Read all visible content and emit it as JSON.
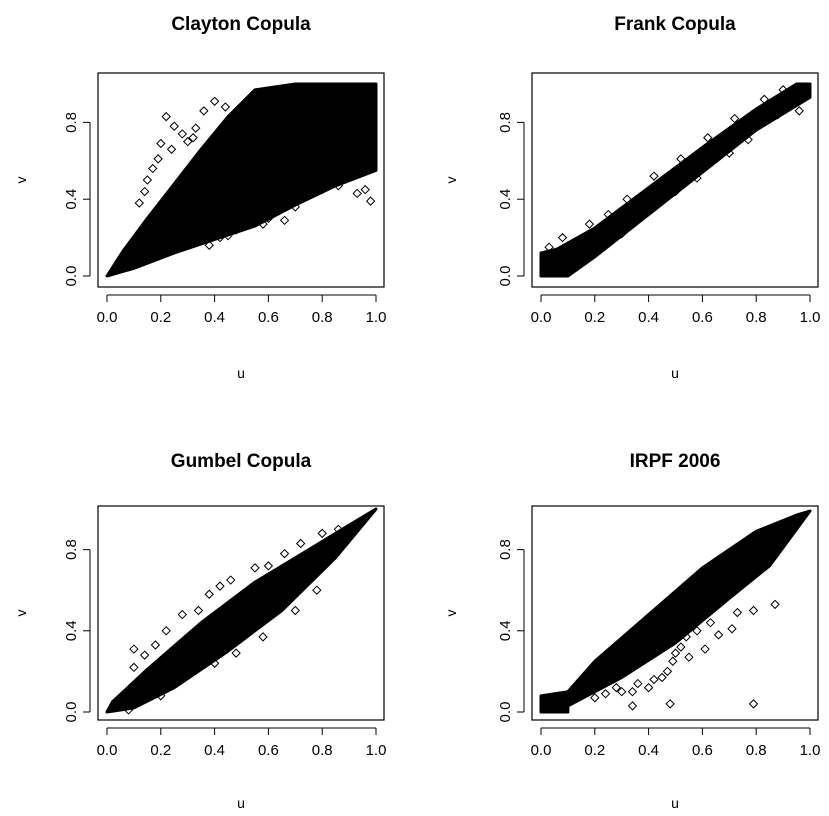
{
  "chart_data": [
    {
      "type": "scatter",
      "title": "Clayton Copula",
      "xlabel": "u",
      "ylabel": "v",
      "xlim": [
        0,
        1
      ],
      "ylim": [
        0,
        1
      ],
      "xticks": [
        "0.0",
        "0.2",
        "0.4",
        "0.6",
        "0.8",
        "1.0"
      ],
      "yticks": [
        "0.0",
        "0.4",
        "0.8"
      ],
      "dense_region": [
        [
          0.0,
          0.0
        ],
        [
          0.1,
          0.04
        ],
        [
          0.25,
          0.12
        ],
        [
          0.4,
          0.19
        ],
        [
          0.55,
          0.26
        ],
        [
          0.7,
          0.37
        ],
        [
          0.85,
          0.47
        ],
        [
          1.0,
          0.55
        ],
        [
          1.0,
          1.0
        ],
        [
          0.7,
          1.0
        ],
        [
          0.55,
          0.97
        ],
        [
          0.45,
          0.83
        ],
        [
          0.35,
          0.66
        ],
        [
          0.25,
          0.48
        ],
        [
          0.15,
          0.3
        ],
        [
          0.06,
          0.13
        ],
        [
          0.0,
          0.0
        ]
      ],
      "scatter_points": [
        [
          0.22,
          0.83
        ],
        [
          0.25,
          0.78
        ],
        [
          0.28,
          0.74
        ],
        [
          0.2,
          0.69
        ],
        [
          0.24,
          0.66
        ],
        [
          0.19,
          0.61
        ],
        [
          0.3,
          0.7
        ],
        [
          0.17,
          0.56
        ],
        [
          0.33,
          0.77
        ],
        [
          0.36,
          0.86
        ],
        [
          0.4,
          0.91
        ],
        [
          0.15,
          0.5
        ],
        [
          0.14,
          0.44
        ],
        [
          0.12,
          0.38
        ],
        [
          0.32,
          0.72
        ],
        [
          0.48,
          0.24
        ],
        [
          0.52,
          0.28
        ],
        [
          0.56,
          0.31
        ],
        [
          0.45,
          0.21
        ],
        [
          0.6,
          0.3
        ],
        [
          0.64,
          0.34
        ],
        [
          0.7,
          0.36
        ],
        [
          0.75,
          0.42
        ],
        [
          0.8,
          0.45
        ],
        [
          0.86,
          0.47
        ],
        [
          0.93,
          0.43
        ],
        [
          0.98,
          0.39
        ],
        [
          0.96,
          0.45
        ],
        [
          0.42,
          0.2
        ],
        [
          0.38,
          0.16
        ],
        [
          0.66,
          0.29
        ],
        [
          0.58,
          0.27
        ],
        [
          0.88,
          0.52
        ],
        [
          0.34,
          0.18
        ],
        [
          0.44,
          0.88
        ],
        [
          0.62,
          0.33
        ]
      ]
    },
    {
      "type": "scatter",
      "title": "Frank Copula",
      "xlabel": "u",
      "ylabel": "v",
      "xlim": [
        0,
        1
      ],
      "ylim": [
        0,
        1
      ],
      "xticks": [
        "0.0",
        "0.2",
        "0.4",
        "0.6",
        "0.8",
        "1.0"
      ],
      "yticks": [
        "0.0",
        "0.4",
        "0.8"
      ],
      "dense_region": [
        [
          0.0,
          0.0
        ],
        [
          0.1,
          0.0
        ],
        [
          0.2,
          0.1
        ],
        [
          0.4,
          0.32
        ],
        [
          0.6,
          0.54
        ],
        [
          0.8,
          0.76
        ],
        [
          1.0,
          0.93
        ],
        [
          1.0,
          1.0
        ],
        [
          0.95,
          1.0
        ],
        [
          0.8,
          0.87
        ],
        [
          0.6,
          0.67
        ],
        [
          0.4,
          0.46
        ],
        [
          0.2,
          0.25
        ],
        [
          0.06,
          0.14
        ],
        [
          0.0,
          0.12
        ],
        [
          0.0,
          0.0
        ]
      ],
      "scatter_points": [
        [
          0.03,
          0.15
        ],
        [
          0.08,
          0.2
        ],
        [
          0.12,
          0.04
        ],
        [
          0.15,
          0.16
        ],
        [
          0.25,
          0.32
        ],
        [
          0.32,
          0.4
        ],
        [
          0.42,
          0.52
        ],
        [
          0.52,
          0.61
        ],
        [
          0.62,
          0.72
        ],
        [
          0.72,
          0.82
        ],
        [
          0.83,
          0.92
        ],
        [
          0.9,
          0.97
        ],
        [
          0.3,
          0.22
        ],
        [
          0.5,
          0.44
        ],
        [
          0.7,
          0.64
        ],
        [
          0.88,
          0.84
        ],
        [
          0.96,
          0.86
        ],
        [
          0.05,
          0.02
        ],
        [
          0.18,
          0.27
        ],
        [
          0.36,
          0.3
        ],
        [
          0.58,
          0.51
        ],
        [
          0.77,
          0.71
        ]
      ]
    },
    {
      "type": "scatter",
      "title": "Gumbel Copula",
      "xlabel": "u",
      "ylabel": "v",
      "xlim": [
        0,
        1
      ],
      "ylim": [
        0,
        1
      ],
      "xticks": [
        "0.0",
        "0.2",
        "0.4",
        "0.6",
        "0.8",
        "1.0"
      ],
      "yticks": [
        "0.0",
        "0.4",
        "0.8"
      ],
      "dense_region": [
        [
          0.0,
          0.0
        ],
        [
          0.1,
          0.02
        ],
        [
          0.25,
          0.12
        ],
        [
          0.45,
          0.3
        ],
        [
          0.65,
          0.5
        ],
        [
          0.85,
          0.76
        ],
        [
          1.0,
          1.0
        ],
        [
          0.9,
          0.92
        ],
        [
          0.75,
          0.8
        ],
        [
          0.55,
          0.64
        ],
        [
          0.35,
          0.44
        ],
        [
          0.15,
          0.21
        ],
        [
          0.02,
          0.05
        ],
        [
          0.0,
          0.0
        ]
      ],
      "scatter_points": [
        [
          0.1,
          0.22
        ],
        [
          0.14,
          0.28
        ],
        [
          0.1,
          0.31
        ],
        [
          0.22,
          0.4
        ],
        [
          0.28,
          0.48
        ],
        [
          0.38,
          0.58
        ],
        [
          0.42,
          0.62
        ],
        [
          0.46,
          0.65
        ],
        [
          0.55,
          0.71
        ],
        [
          0.6,
          0.72
        ],
        [
          0.66,
          0.78
        ],
        [
          0.72,
          0.83
        ],
        [
          0.8,
          0.88
        ],
        [
          0.86,
          0.9
        ],
        [
          0.08,
          0.01
        ],
        [
          0.2,
          0.08
        ],
        [
          0.4,
          0.24
        ],
        [
          0.48,
          0.29
        ],
        [
          0.58,
          0.37
        ],
        [
          0.7,
          0.5
        ],
        [
          0.78,
          0.6
        ],
        [
          0.26,
          0.18
        ],
        [
          0.34,
          0.5
        ],
        [
          0.18,
          0.33
        ]
      ]
    },
    {
      "type": "scatter",
      "title": "IRPF 2006",
      "xlabel": "u",
      "ylabel": "v",
      "xlim": [
        0,
        1
      ],
      "ylim": [
        0,
        1
      ],
      "xticks": [
        "0.0",
        "0.2",
        "0.4",
        "0.6",
        "0.8",
        "1.0"
      ],
      "yticks": [
        "0.0",
        "0.4",
        "0.8"
      ],
      "dense_region": [
        [
          0.0,
          0.0
        ],
        [
          0.1,
          0.0
        ],
        [
          0.1,
          0.03
        ],
        [
          0.3,
          0.17
        ],
        [
          0.5,
          0.34
        ],
        [
          0.7,
          0.56
        ],
        [
          0.85,
          0.72
        ],
        [
          1.0,
          0.99
        ],
        [
          0.95,
          0.97
        ],
        [
          0.8,
          0.89
        ],
        [
          0.6,
          0.71
        ],
        [
          0.4,
          0.48
        ],
        [
          0.2,
          0.25
        ],
        [
          0.1,
          0.1
        ],
        [
          0.0,
          0.08
        ],
        [
          0.0,
          0.0
        ]
      ],
      "scatter_points": [
        [
          0.79,
          0.04
        ],
        [
          0.87,
          0.53
        ],
        [
          0.79,
          0.5
        ],
        [
          0.73,
          0.49
        ],
        [
          0.71,
          0.41
        ],
        [
          0.58,
          0.4
        ],
        [
          0.54,
          0.37
        ],
        [
          0.52,
          0.32
        ],
        [
          0.5,
          0.29
        ],
        [
          0.49,
          0.25
        ],
        [
          0.47,
          0.2
        ],
        [
          0.45,
          0.17
        ],
        [
          0.42,
          0.16
        ],
        [
          0.36,
          0.14
        ],
        [
          0.34,
          0.03
        ],
        [
          0.34,
          0.1
        ],
        [
          0.3,
          0.1
        ],
        [
          0.28,
          0.12
        ],
        [
          0.24,
          0.09
        ],
        [
          0.2,
          0.07
        ],
        [
          0.48,
          0.04
        ],
        [
          0.61,
          0.31
        ],
        [
          0.66,
          0.38
        ],
        [
          0.4,
          0.12
        ],
        [
          0.55,
          0.27
        ],
        [
          0.63,
          0.44
        ]
      ]
    }
  ]
}
